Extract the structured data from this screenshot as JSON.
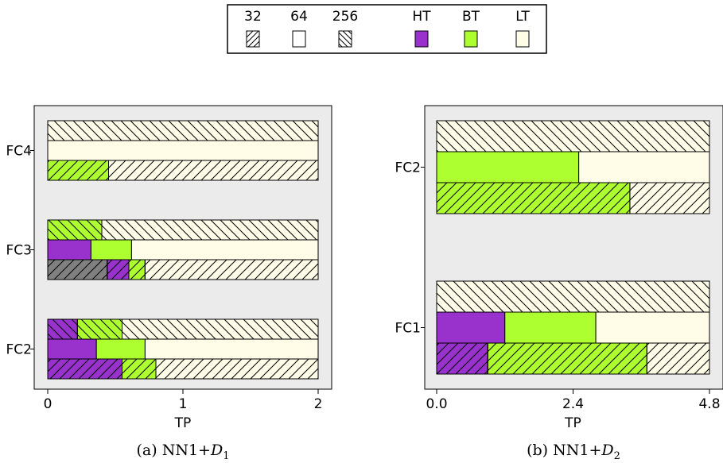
{
  "legend": {
    "items": [
      {
        "label": "32",
        "pattern": "fwd",
        "color": "#ffffff"
      },
      {
        "label": "64",
        "pattern": "none",
        "color": "#ffffff"
      },
      {
        "label": "256",
        "pattern": "back",
        "color": "#ffffff"
      },
      {
        "label": "HT",
        "pattern": "none",
        "color": "#9932cc"
      },
      {
        "label": "BT",
        "pattern": "none",
        "color": "#adff2f"
      },
      {
        "label": "LT",
        "pattern": "none",
        "color": "#fffde8"
      }
    ]
  },
  "colors": {
    "HT": "#9932cc",
    "BT": "#adff2f",
    "LT": "#fffde8",
    "gray": "#808080",
    "panel_bg": "#ebebeb"
  },
  "chart_data": [
    {
      "type": "bar",
      "orientation": "horizontal-stacked",
      "caption": "(a) NN1+",
      "caption_symbol": "D",
      "caption_sub": "1",
      "xlabel": "TP",
      "xlim": [
        0,
        2.1
      ],
      "xticks": [
        0,
        1,
        2
      ],
      "xtick_labels": [
        "0",
        "1",
        "2"
      ],
      "groups": [
        {
          "label": "FC4",
          "bars": [
            {
              "pattern": "back",
              "segments": [
                {
                  "c": "LT",
                  "v": 2.0
                }
              ]
            },
            {
              "pattern": "none",
              "segments": [
                {
                  "c": "LT",
                  "v": 2.0
                }
              ]
            },
            {
              "pattern": "fwd",
              "segments": [
                {
                  "c": "BT",
                  "v": 0.45
                },
                {
                  "c": "LT",
                  "v": 1.55
                }
              ]
            }
          ]
        },
        {
          "label": "FC3",
          "bars": [
            {
              "pattern": "back",
              "segments": [
                {
                  "c": "BT",
                  "v": 0.4
                },
                {
                  "c": "LT",
                  "v": 1.6
                }
              ]
            },
            {
              "pattern": "none",
              "segments": [
                {
                  "c": "HT",
                  "v": 0.32
                },
                {
                  "c": "BT",
                  "v": 0.3
                },
                {
                  "c": "LT",
                  "v": 1.38
                }
              ]
            },
            {
              "pattern": "fwd",
              "segments": [
                {
                  "c": "gray",
                  "v": 0.44
                },
                {
                  "c": "HT",
                  "v": 0.16
                },
                {
                  "c": "BT",
                  "v": 0.12
                },
                {
                  "c": "LT",
                  "v": 1.28
                }
              ]
            }
          ]
        },
        {
          "label": "FC2",
          "bars": [
            {
              "pattern": "back",
              "segments": [
                {
                  "c": "HT",
                  "v": 0.22
                },
                {
                  "c": "BT",
                  "v": 0.33
                },
                {
                  "c": "LT",
                  "v": 1.45
                }
              ]
            },
            {
              "pattern": "none",
              "segments": [
                {
                  "c": "HT",
                  "v": 0.36
                },
                {
                  "c": "BT",
                  "v": 0.36
                },
                {
                  "c": "LT",
                  "v": 1.28
                }
              ]
            },
            {
              "pattern": "fwd",
              "segments": [
                {
                  "c": "HT",
                  "v": 0.55
                },
                {
                  "c": "BT",
                  "v": 0.25
                },
                {
                  "c": "LT",
                  "v": 1.2
                }
              ]
            }
          ]
        }
      ]
    },
    {
      "type": "bar",
      "orientation": "horizontal-stacked",
      "caption": "(b) NN1+",
      "caption_symbol": "D",
      "caption_sub": "2",
      "xlabel": "TP",
      "xlim": [
        0,
        4.8
      ],
      "xticks": [
        0,
        2.4,
        4.8
      ],
      "xtick_labels": [
        "0.0",
        "2.4",
        "4.8"
      ],
      "groups": [
        {
          "label": "FC2",
          "bars": [
            {
              "pattern": "back",
              "segments": [
                {
                  "c": "LT",
                  "v": 4.8
                }
              ]
            },
            {
              "pattern": "none",
              "segments": [
                {
                  "c": "BT",
                  "v": 2.5
                },
                {
                  "c": "LT",
                  "v": 2.3
                }
              ]
            },
            {
              "pattern": "fwd",
              "segments": [
                {
                  "c": "BT",
                  "v": 3.4
                },
                {
                  "c": "LT",
                  "v": 1.4
                }
              ]
            }
          ]
        },
        {
          "label": "FC1",
          "bars": [
            {
              "pattern": "back",
              "segments": [
                {
                  "c": "LT",
                  "v": 4.8
                }
              ]
            },
            {
              "pattern": "none",
              "segments": [
                {
                  "c": "HT",
                  "v": 1.2
                },
                {
                  "c": "BT",
                  "v": 1.6
                },
                {
                  "c": "LT",
                  "v": 2.0
                }
              ]
            },
            {
              "pattern": "fwd",
              "segments": [
                {
                  "c": "HT",
                  "v": 0.9
                },
                {
                  "c": "BT",
                  "v": 2.8
                },
                {
                  "c": "LT",
                  "v": 1.1
                }
              ]
            }
          ]
        }
      ]
    }
  ]
}
